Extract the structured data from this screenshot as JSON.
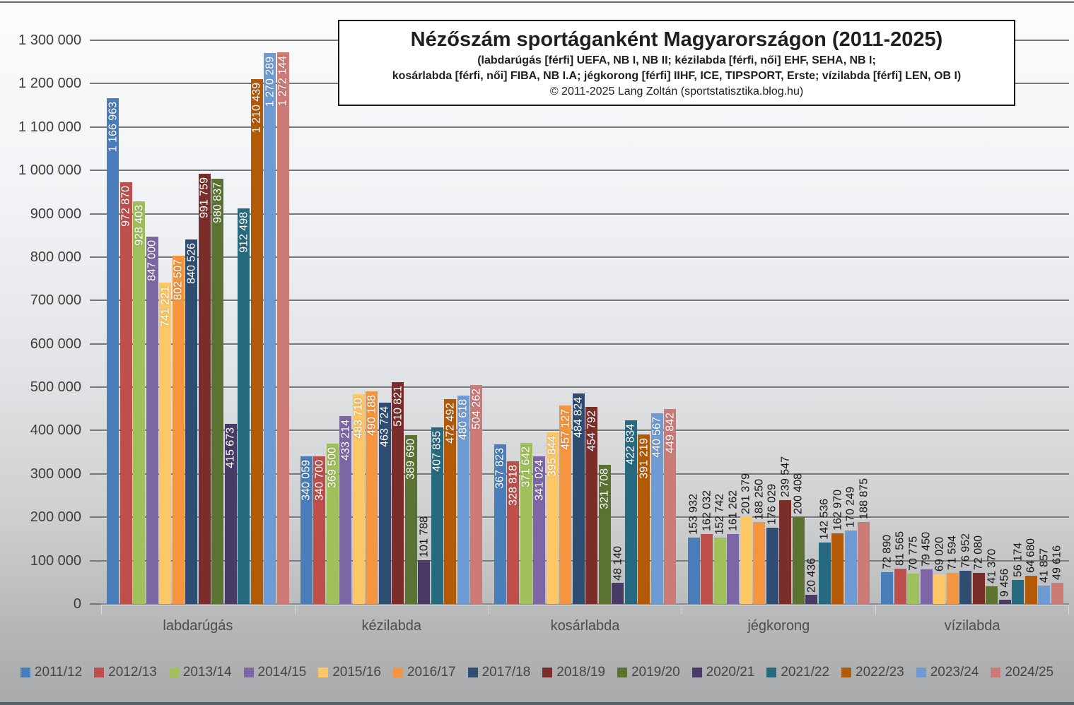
{
  "title": {
    "main": "Nézőszám sportáganként Magyarországon (2011-2025)",
    "sub1": "(labdarúgás [férfi] UEFA, NB I, NB II; kézilabda [férfi, női] EHF, SEHA, NB I;",
    "sub2": "kosárlabda [férfi, női] FIBA, NB I.A; jégkorong [férfi] IIHF, ICE, TIPSPORT, Erste; vízilabda [férfi] LEN, OB I)",
    "copyright": "© 2011-2025 Lang Zoltán (sportstatisztika.blog.hu)"
  },
  "chart_data": {
    "type": "bar",
    "grouping": "grouped",
    "categories": [
      "labdarúgás",
      "kézilabda",
      "kosárlabda",
      "jégkorong",
      "vízilabda"
    ],
    "series": [
      {
        "name": "2011/12",
        "color": "#4A7EBB",
        "values": [
          1166963,
          340059,
          367823,
          153932,
          72890
        ]
      },
      {
        "name": "2012/13",
        "color": "#BE4F4B",
        "values": [
          972870,
          340700,
          328818,
          162032,
          81565
        ]
      },
      {
        "name": "2013/14",
        "color": "#9FC05A",
        "values": [
          928403,
          369500,
          371642,
          152742,
          70775
        ]
      },
      {
        "name": "2014/15",
        "color": "#7D66A5",
        "values": [
          847000,
          433214,
          341024,
          161262,
          79450
        ]
      },
      {
        "name": "2015/16",
        "color": "#FDC765",
        "values": [
          741221,
          483710,
          395844,
          201379,
          69020
        ]
      },
      {
        "name": "2016/17",
        "color": "#F5953F",
        "values": [
          802507,
          490188,
          457127,
          188250,
          71594
        ]
      },
      {
        "name": "2017/18",
        "color": "#2E4D71",
        "values": [
          840526,
          463724,
          484824,
          176029,
          76952
        ]
      },
      {
        "name": "2018/19",
        "color": "#7B2D2A",
        "values": [
          991759,
          510821,
          454792,
          239547,
          72080
        ]
      },
      {
        "name": "2019/20",
        "color": "#5B7331",
        "values": [
          980837,
          389690,
          321708,
          200408,
          41370
        ]
      },
      {
        "name": "2020/21",
        "color": "#493B66",
        "values": [
          415673,
          101788,
          48140,
          20436,
          9456
        ]
      },
      {
        "name": "2021/22",
        "color": "#27697E",
        "values": [
          912498,
          407835,
          422834,
          142536,
          56174
        ]
      },
      {
        "name": "2022/23",
        "color": "#B35A08",
        "values": [
          1210439,
          472492,
          391219,
          162970,
          64680
        ]
      },
      {
        "name": "2023/24",
        "color": "#6F9BD4",
        "values": [
          1270289,
          480618,
          440567,
          170249,
          41857
        ]
      },
      {
        "name": "2024/25",
        "color": "#CD7B77",
        "values": [
          1272144,
          504262,
          449842,
          188875,
          49616
        ]
      }
    ],
    "ylim": [
      0,
      1300000
    ],
    "ytick_interval": 100000,
    "ytick_labels": [
      "0",
      "100 000",
      "200 000",
      "300 000",
      "400 000",
      "500 000",
      "600 000",
      "700 000",
      "800 000",
      "900 000",
      "1 000 000",
      "1 100 000",
      "1 200 000",
      "1 300 000"
    ],
    "grid": "horizontal",
    "legend_position": "bottom",
    "value_labels": "every bar, rotated 90°, thousands separated by space",
    "value_label_inside_min": 300000
  }
}
